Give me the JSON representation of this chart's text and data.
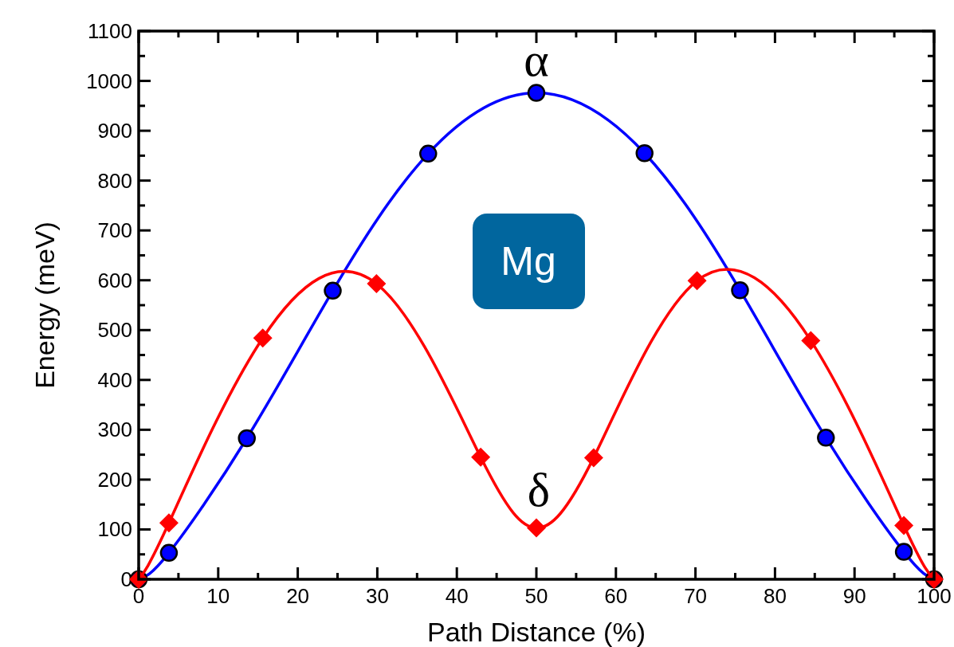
{
  "chart_data": {
    "type": "line",
    "xlabel": "Path Distance (%)",
    "ylabel": "Energy (meV)",
    "xlim": [
      0,
      100
    ],
    "ylim": [
      0,
      1100
    ],
    "xticks": [
      0,
      {
        "value": 5,
        "label": null
      },
      10,
      {
        "value": 15,
        "label": null
      },
      20,
      {
        "value": 25,
        "label": null
      },
      30,
      {
        "value": 35,
        "label": null
      },
      40,
      {
        "value": 45,
        "label": null
      },
      50,
      {
        "value": 55,
        "label": null
      },
      60,
      {
        "value": 65,
        "label": null
      },
      70,
      {
        "value": 75,
        "label": null
      },
      80,
      {
        "value": 85,
        "label": null
      },
      90,
      {
        "value": 95,
        "label": null
      },
      100
    ],
    "yticks": [
      0,
      {
        "value": 50,
        "label": null
      },
      100,
      {
        "value": 150,
        "label": null
      },
      200,
      {
        "value": 250,
        "label": null
      },
      300,
      {
        "value": 350,
        "label": null
      },
      400,
      {
        "value": 450,
        "label": null
      },
      500,
      {
        "value": 550,
        "label": null
      },
      600,
      {
        "value": 650,
        "label": null
      },
      700,
      {
        "value": 750,
        "label": null
      },
      800,
      {
        "value": 850,
        "label": null
      },
      900,
      {
        "value": 950,
        "label": null
      },
      1000,
      {
        "value": 1050,
        "label": null
      },
      1100
    ],
    "grid": false,
    "line_style": "solid",
    "series": [
      {
        "color": "#0000ff",
        "marker": "circle",
        "x": [
          0,
          3.8,
          13.6,
          24.4,
          36.4,
          50,
          63.6,
          75.6,
          86.4,
          96.2,
          100
        ],
        "values": [
          0,
          53,
          283,
          579,
          854,
          976,
          855,
          580,
          284,
          55,
          0
        ]
      },
      {
        "color": "#ff0000",
        "marker": "diamond",
        "x": [
          0,
          3.8,
          15.6,
          29.9,
          43,
          50,
          57.2,
          70.2,
          84.5,
          96.2,
          100
        ],
        "values": [
          0,
          113,
          484,
          593,
          245,
          103,
          244,
          599,
          479,
          108,
          0
        ]
      }
    ],
    "annotations": [
      "α",
      "δ",
      "Mg"
    ]
  }
}
